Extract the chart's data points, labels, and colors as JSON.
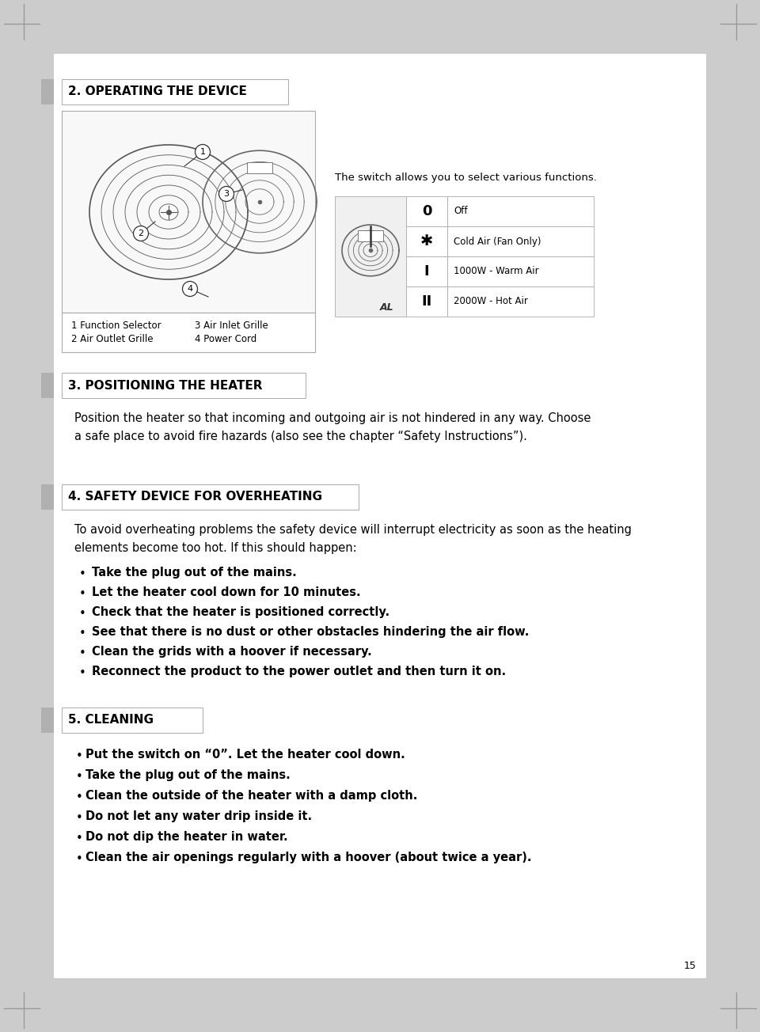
{
  "bg_outer": "#cccccc",
  "bg_page": "#ffffff",
  "page_number": "15",
  "section2_title": "2. OPERATING THE DEVICE",
  "section2_caption_left1": "1 Function Selector",
  "section2_caption_left2": "2 Air Outlet Grille",
  "section2_caption_right1": "3 Air Inlet Grille",
  "section2_caption_right2": "4 Power Cord",
  "switch_text": "The switch allows you to select various functions.",
  "table_symbols": [
    "0",
    "✶",
    "I",
    "II"
  ],
  "table_descs": [
    "Off",
    "Cold Air (Fan Only)",
    "1000W - Warm Air",
    "2000W - Hot Air"
  ],
  "section3_title": "3. POSITIONING THE HEATER",
  "section3_line1": "Position the heater so that incoming and outgoing air is not hindered in any way. Choose",
  "section3_line2": "a safe place to avoid fire hazards (also see the chapter “Safety Instructions”).",
  "section4_title": "4. SAFETY DEVICE FOR OVERHEATING",
  "section4_line1": "To avoid overheating problems the safety device will interrupt electricity as soon as the heating",
  "section4_line2": "elements become too hot. If this should happen:",
  "section4_bullets": [
    "Take the plug out of the mains.",
    "Let the heater cool down for 10 minutes.",
    "Check that the heater is positioned correctly.",
    "See that there is no dust or other obstacles hindering the air flow.",
    "Clean the grids with a hoover if necessary.",
    "Reconnect the product to the power outlet and then turn it on."
  ],
  "section5_title": "5. CLEANING",
  "section5_bullets": [
    "Put the switch on “0”. Let the heater cool down.",
    "Take the plug out of the mains.",
    "Clean the outside of the heater with a damp cloth.",
    "Do not let any water drip inside it.",
    "Do not dip the heater in water.",
    "Clean the air openings regularly with a hoover (about twice a year)."
  ],
  "header_box_color": "#e8e8e8",
  "header_tab_color": "#b0b0b0",
  "diag_border": "#aaaaaa",
  "diag_bg": "#f8f8f8",
  "table_line_color": "#aaaaaa",
  "table_img_bg": "#f0f0f0"
}
